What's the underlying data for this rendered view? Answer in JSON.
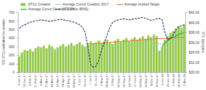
{
  "chart_data": {
    "type": "bar",
    "categories": [
      "6-Jan-17",
      null,
      "20-Jan-17",
      null,
      "3-Feb-17",
      null,
      "17-Feb-17",
      null,
      "3-Mar-17",
      null,
      "17-Mar-17",
      null,
      "31-Mar-17",
      null,
      "14-Apr-17",
      null,
      "28-Apr-17",
      null,
      "12-May-17",
      null,
      "26-May-17",
      null,
      "9-Jun-17",
      null,
      "23-Jun-17",
      null,
      "7-Jul-17",
      null,
      "21-Jul-17",
      null,
      "4-Aug-17",
      null,
      "18-Aug-17",
      null,
      "1-Sep-17",
      null,
      "15-Sep-17",
      null,
      "29-Sep-17",
      null,
      "13-Oct-17",
      null,
      "27-Oct-17",
      null,
      "10-Nov-17",
      null,
      "24-Nov-17",
      null,
      "8-Dec-17",
      null,
      "22-Dec-17",
      null,
      "5-Jan-18",
      null,
      "19-Jan-18",
      null,
      "2-Feb-18",
      null,
      "16-Feb-18",
      null,
      "2-Mar-18"
    ],
    "ylabel": "'000 STCs submitted for creation",
    "y2label": "STC Spot price",
    "ylim": [
      0,
      700
    ],
    "yticks": [
      0,
      100,
      200,
      300,
      400,
      500,
      600,
      700
    ],
    "y2lim": [
      30,
      42
    ],
    "y2ticks": [
      {
        "value": 30,
        "label": "$30.00"
      },
      {
        "value": 32,
        "label": "$32.00"
      },
      {
        "value": 34,
        "label": "$34.00"
      },
      {
        "value": 36,
        "label": "$36.00"
      },
      {
        "value": 38,
        "label": "$38.00"
      },
      {
        "value": 40,
        "label": "$40.00"
      },
      {
        "value": 42,
        "label": "$42.00"
      }
    ],
    "grid": false,
    "legend": "top",
    "series": [
      {
        "name": "STCs Created",
        "type": "bar",
        "color": "#8dc63f",
        "values": [
          180,
          230,
          260,
          250,
          270,
          240,
          280,
          300,
          290,
          310,
          280,
          320,
          300,
          260,
          290,
          310,
          330,
          300,
          320,
          340,
          310,
          330,
          350,
          320,
          300,
          340,
          360,
          330,
          350,
          370,
          340,
          360,
          380,
          350,
          330,
          370,
          390,
          360,
          380,
          400,
          370,
          390,
          410,
          380,
          400,
          420,
          390,
          430,
          410,
          440,
          420,
          250,
          300,
          380,
          420,
          460,
          480,
          510,
          540,
          520,
          560
        ]
      },
      {
        "name": "Average Cumul Creation 2017",
        "type": "line",
        "color": "#a8d08d",
        "line_style": "solid",
        "values": [
          180,
          205,
          223,
          230,
          238,
          238,
          244,
          251,
          256,
          261,
          263,
          268,
          270,
          270,
          272,
          274,
          277,
          278,
          280,
          283,
          284,
          286,
          289,
          290,
          290,
          292,
          295,
          296,
          298,
          300,
          301,
          303,
          305,
          306,
          307,
          309,
          311,
          312,
          314,
          316,
          317,
          319,
          321,
          322,
          324,
          326,
          327,
          329,
          331,
          333,
          334,
          332,
          332,
          332,
          332,
          332,
          332,
          332,
          332,
          332,
          332
        ]
      },
      {
        "name": "Average Implied Target",
        "type": "line",
        "color": "#ed7d31",
        "line_style": "solid",
        "values": [
          null,
          null,
          null,
          null,
          null,
          null,
          null,
          null,
          null,
          null,
          null,
          null,
          null,
          null,
          null,
          null,
          null,
          null,
          null,
          null,
          null,
          null,
          null,
          null,
          null,
          null,
          330,
          333,
          336,
          338,
          341,
          343,
          346,
          348,
          351,
          353,
          356,
          358,
          361,
          363,
          366,
          368,
          371,
          373,
          376,
          378,
          381,
          383,
          386,
          388,
          391,
          393,
          395,
          396,
          398,
          399,
          401,
          402,
          404,
          405,
          407
        ]
      },
      {
        "name": "Average Cumul Creation 2018",
        "type": "line",
        "color": "#00a651",
        "line_style": "solid",
        "values": [
          null,
          null,
          null,
          null,
          null,
          null,
          null,
          null,
          null,
          null,
          null,
          null,
          null,
          null,
          null,
          null,
          null,
          null,
          null,
          null,
          null,
          null,
          null,
          null,
          null,
          null,
          null,
          null,
          null,
          null,
          null,
          null,
          null,
          null,
          null,
          null,
          null,
          null,
          null,
          null,
          null,
          null,
          null,
          null,
          null,
          null,
          null,
          null,
          null,
          null,
          null,
          null,
          300,
          340,
          367,
          390,
          408,
          425,
          441,
          451,
          463
        ]
      },
      {
        "name": "STC Price (BNS)",
        "type": "line",
        "color": "#1f3864",
        "line_style": "dashed",
        "axis": "y2",
        "values": [
          38.8,
          39.2,
          39.5,
          39.8,
          40.0,
          40.2,
          40.3,
          40.4,
          40.5,
          40.4,
          40.3,
          40.2,
          40.3,
          40.4,
          40.5,
          40.6,
          40.5,
          40.4,
          40.3,
          40.2,
          40.0,
          39.8,
          39.5,
          39.0,
          38.0,
          35.0,
          31.5,
          31.0,
          31.2,
          32.5,
          34.5,
          36.0,
          37.5,
          39.0,
          40.0,
          40.3,
          40.5,
          40.6,
          40.7,
          40.6,
          40.5,
          40.6,
          40.7,
          40.8,
          40.9,
          41.0,
          40.8,
          40.6,
          40.4,
          40.5,
          40.7,
          40.8,
          40.5,
          38.0,
          36.5,
          36.8,
          37.5,
          38.5,
          39.0,
          39.3,
          39.5
        ]
      }
    ]
  }
}
